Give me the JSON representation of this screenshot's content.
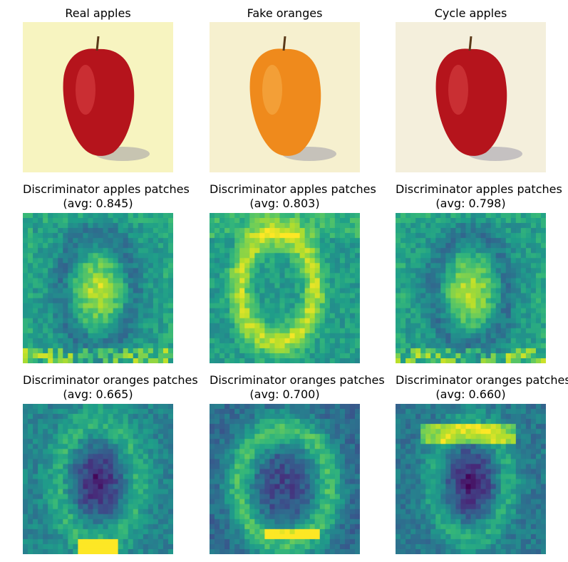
{
  "figure": {
    "rows": [
      {
        "kind": "images",
        "panels": [
          {
            "title": "Real apples",
            "fruit": "apple",
            "background": "#f7f4c0",
            "fruit_color": "#b5141c",
            "highlight": "#e0484a"
          },
          {
            "title": "Fake oranges",
            "fruit": "orange",
            "background": "#f6f0cf",
            "fruit_color": "#ef8a1c",
            "highlight": "#f7b451"
          },
          {
            "title": "Cycle apples",
            "fruit": "apple",
            "background": "#f4efdc",
            "fruit_color": "#b5141c",
            "highlight": "#de4a4a"
          }
        ]
      },
      {
        "kind": "heatmaps",
        "panels": [
          {
            "title_line1": "Discriminator apples patches",
            "title_line2": "(avg: 0.845)",
            "avg": 0.845,
            "pattern": "apple"
          },
          {
            "title_line1": "Discriminator apples patches",
            "title_line2": "(avg: 0.803)",
            "avg": 0.803,
            "pattern": "frame"
          },
          {
            "title_line1": "Discriminator apples patches",
            "title_line2": "(avg: 0.798)",
            "avg": 0.798,
            "pattern": "apple"
          }
        ]
      },
      {
        "kind": "heatmaps",
        "panels": [
          {
            "title_line1": "Discriminator oranges patches",
            "title_line2": "(avg: 0.665)",
            "avg": 0.665,
            "pattern": "dark-center"
          },
          {
            "title_line1": "Discriminator oranges patches",
            "title_line2": "(avg: 0.700)",
            "avg": 0.7,
            "pattern": "dark-frame"
          },
          {
            "title_line1": "Discriminator oranges patches",
            "title_line2": "(avg: 0.660)",
            "avg": 0.66,
            "pattern": "dark-top"
          }
        ]
      }
    ],
    "colormap": "viridis"
  }
}
